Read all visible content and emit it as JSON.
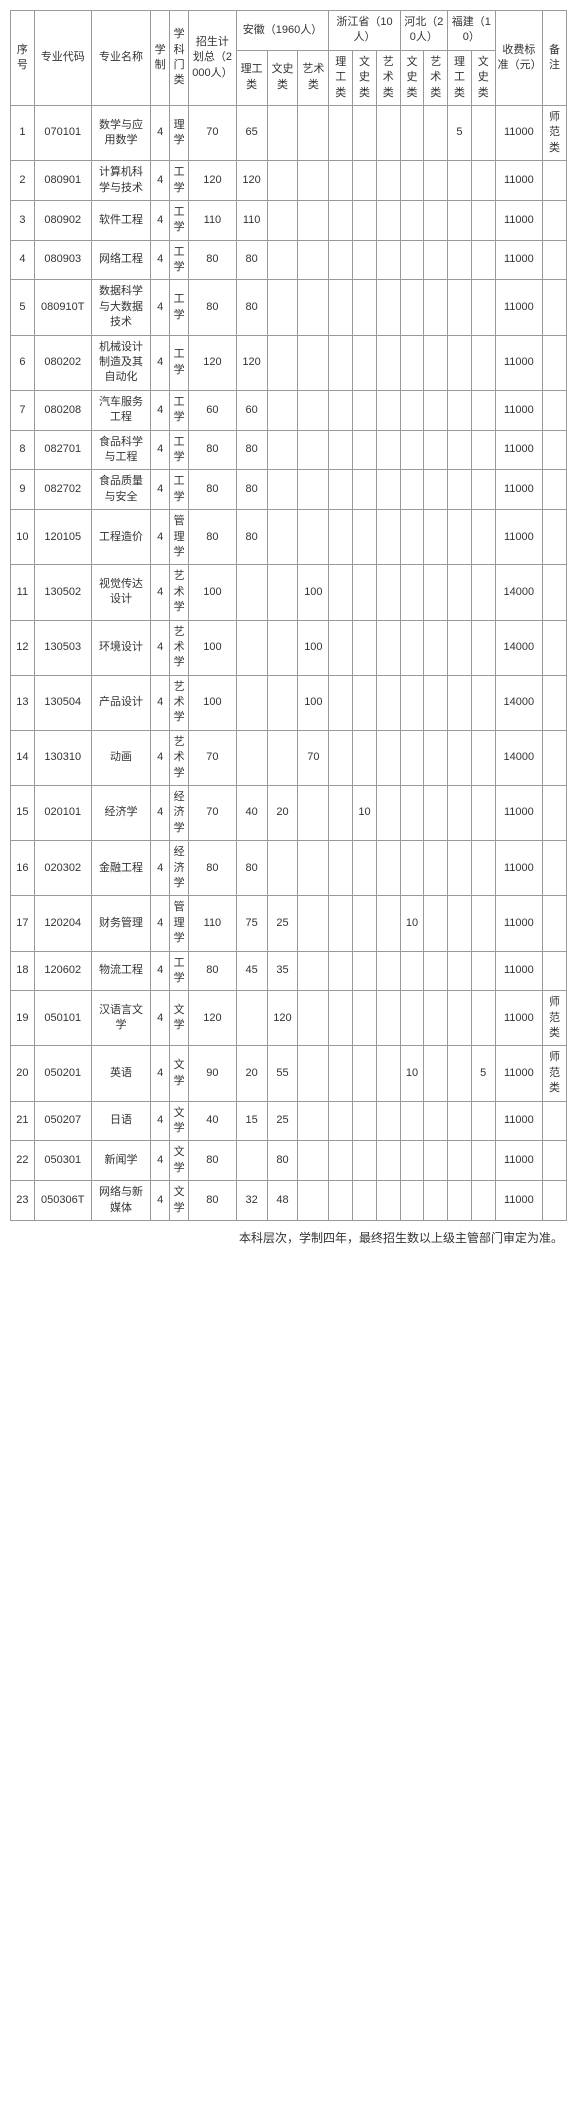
{
  "headers": {
    "seq": "序号",
    "major_code": "专业代码",
    "major_name": "专业名称",
    "years": "学制",
    "category": "学科门类",
    "plan_total": "招生计划总（2000人）",
    "anhui": "安徽（1960人）",
    "zhejiang": "浙江省（10人）",
    "hebei": "河北（20人）",
    "fujian": "福建（10）",
    "fee": "收费标准（元）",
    "note": "备注",
    "sci": "理工类",
    "lit": "文史类",
    "art": "艺术类"
  },
  "rows": [
    {
      "n": "1",
      "code": "070101",
      "name": "数学与应用数学",
      "y": "4",
      "cat": "理学",
      "tot": "70",
      "ah_s": "65",
      "ah_l": "",
      "ah_a": "",
      "zj_s": "",
      "zj_l": "",
      "zj_a": "",
      "hb_l": "",
      "hb_a": "",
      "fj_s": "5",
      "fj_l": "",
      "fee": "11000",
      "note": "师范类"
    },
    {
      "n": "2",
      "code": "080901",
      "name": "计算机科学与技术",
      "y": "4",
      "cat": "工学",
      "tot": "120",
      "ah_s": "120",
      "ah_l": "",
      "ah_a": "",
      "zj_s": "",
      "zj_l": "",
      "zj_a": "",
      "hb_l": "",
      "hb_a": "",
      "fj_s": "",
      "fj_l": "",
      "fee": "11000",
      "note": ""
    },
    {
      "n": "3",
      "code": "080902",
      "name": "软件工程",
      "y": "4",
      "cat": "工学",
      "tot": "110",
      "ah_s": "110",
      "ah_l": "",
      "ah_a": "",
      "zj_s": "",
      "zj_l": "",
      "zj_a": "",
      "hb_l": "",
      "hb_a": "",
      "fj_s": "",
      "fj_l": "",
      "fee": "11000",
      "note": ""
    },
    {
      "n": "4",
      "code": "080903",
      "name": "网络工程",
      "y": "4",
      "cat": "工学",
      "tot": "80",
      "ah_s": "80",
      "ah_l": "",
      "ah_a": "",
      "zj_s": "",
      "zj_l": "",
      "zj_a": "",
      "hb_l": "",
      "hb_a": "",
      "fj_s": "",
      "fj_l": "",
      "fee": "11000",
      "note": ""
    },
    {
      "n": "5",
      "code": "080910T",
      "name": "数据科学与大数据技术",
      "y": "4",
      "cat": "工学",
      "tot": "80",
      "ah_s": "80",
      "ah_l": "",
      "ah_a": "",
      "zj_s": "",
      "zj_l": "",
      "zj_a": "",
      "hb_l": "",
      "hb_a": "",
      "fj_s": "",
      "fj_l": "",
      "fee": "11000",
      "note": ""
    },
    {
      "n": "6",
      "code": "080202",
      "name": "机械设计制造及其自动化",
      "y": "4",
      "cat": "工学",
      "tot": "120",
      "ah_s": "120",
      "ah_l": "",
      "ah_a": "",
      "zj_s": "",
      "zj_l": "",
      "zj_a": "",
      "hb_l": "",
      "hb_a": "",
      "fj_s": "",
      "fj_l": "",
      "fee": "11000",
      "note": ""
    },
    {
      "n": "7",
      "code": "080208",
      "name": "汽车服务工程",
      "y": "4",
      "cat": "工学",
      "tot": "60",
      "ah_s": "60",
      "ah_l": "",
      "ah_a": "",
      "zj_s": "",
      "zj_l": "",
      "zj_a": "",
      "hb_l": "",
      "hb_a": "",
      "fj_s": "",
      "fj_l": "",
      "fee": "11000",
      "note": ""
    },
    {
      "n": "8",
      "code": "082701",
      "name": "食品科学与工程",
      "y": "4",
      "cat": "工学",
      "tot": "80",
      "ah_s": "80",
      "ah_l": "",
      "ah_a": "",
      "zj_s": "",
      "zj_l": "",
      "zj_a": "",
      "hb_l": "",
      "hb_a": "",
      "fj_s": "",
      "fj_l": "",
      "fee": "11000",
      "note": ""
    },
    {
      "n": "9",
      "code": "082702",
      "name": "食品质量与安全",
      "y": "4",
      "cat": "工学",
      "tot": "80",
      "ah_s": "80",
      "ah_l": "",
      "ah_a": "",
      "zj_s": "",
      "zj_l": "",
      "zj_a": "",
      "hb_l": "",
      "hb_a": "",
      "fj_s": "",
      "fj_l": "",
      "fee": "11000",
      "note": ""
    },
    {
      "n": "10",
      "code": "120105",
      "name": "工程造价",
      "y": "4",
      "cat": "管理学",
      "tot": "80",
      "ah_s": "80",
      "ah_l": "",
      "ah_a": "",
      "zj_s": "",
      "zj_l": "",
      "zj_a": "",
      "hb_l": "",
      "hb_a": "",
      "fj_s": "",
      "fj_l": "",
      "fee": "11000",
      "note": ""
    },
    {
      "n": "11",
      "code": "130502",
      "name": "视觉传达设计",
      "y": "4",
      "cat": "艺术学",
      "tot": "100",
      "ah_s": "",
      "ah_l": "",
      "ah_a": "100",
      "zj_s": "",
      "zj_l": "",
      "zj_a": "",
      "hb_l": "",
      "hb_a": "",
      "fj_s": "",
      "fj_l": "",
      "fee": "14000",
      "note": ""
    },
    {
      "n": "12",
      "code": "130503",
      "name": "环境设计",
      "y": "4",
      "cat": "艺术学",
      "tot": "100",
      "ah_s": "",
      "ah_l": "",
      "ah_a": "100",
      "zj_s": "",
      "zj_l": "",
      "zj_a": "",
      "hb_l": "",
      "hb_a": "",
      "fj_s": "",
      "fj_l": "",
      "fee": "14000",
      "note": ""
    },
    {
      "n": "13",
      "code": "130504",
      "name": "产品设计",
      "y": "4",
      "cat": "艺术学",
      "tot": "100",
      "ah_s": "",
      "ah_l": "",
      "ah_a": "100",
      "zj_s": "",
      "zj_l": "",
      "zj_a": "",
      "hb_l": "",
      "hb_a": "",
      "fj_s": "",
      "fj_l": "",
      "fee": "14000",
      "note": ""
    },
    {
      "n": "14",
      "code": "130310",
      "name": "动画",
      "y": "4",
      "cat": "艺术学",
      "tot": "70",
      "ah_s": "",
      "ah_l": "",
      "ah_a": "70",
      "zj_s": "",
      "zj_l": "",
      "zj_a": "",
      "hb_l": "",
      "hb_a": "",
      "fj_s": "",
      "fj_l": "",
      "fee": "14000",
      "note": ""
    },
    {
      "n": "15",
      "code": "020101",
      "name": "经济学",
      "y": "4",
      "cat": "经济学",
      "tot": "70",
      "ah_s": "40",
      "ah_l": "20",
      "ah_a": "",
      "zj_s": "",
      "zj_l": "10",
      "zj_a": "",
      "hb_l": "",
      "hb_a": "",
      "fj_s": "",
      "fj_l": "",
      "fee": "11000",
      "note": ""
    },
    {
      "n": "16",
      "code": "020302",
      "name": "金融工程",
      "y": "4",
      "cat": "经济学",
      "tot": "80",
      "ah_s": "80",
      "ah_l": "",
      "ah_a": "",
      "zj_s": "",
      "zj_l": "",
      "zj_a": "",
      "hb_l": "",
      "hb_a": "",
      "fj_s": "",
      "fj_l": "",
      "fee": "11000",
      "note": ""
    },
    {
      "n": "17",
      "code": "120204",
      "name": "财务管理",
      "y": "4",
      "cat": "管理学",
      "tot": "110",
      "ah_s": "75",
      "ah_l": "25",
      "ah_a": "",
      "zj_s": "",
      "zj_l": "",
      "zj_a": "",
      "hb_l": "10",
      "hb_a": "",
      "fj_s": "",
      "fj_l": "",
      "fee": "11000",
      "note": ""
    },
    {
      "n": "18",
      "code": "120602",
      "name": "物流工程",
      "y": "4",
      "cat": "工学",
      "tot": "80",
      "ah_s": "45",
      "ah_l": "35",
      "ah_a": "",
      "zj_s": "",
      "zj_l": "",
      "zj_a": "",
      "hb_l": "",
      "hb_a": "",
      "fj_s": "",
      "fj_l": "",
      "fee": "11000",
      "note": ""
    },
    {
      "n": "19",
      "code": "050101",
      "name": "汉语言文学",
      "y": "4",
      "cat": "文学",
      "tot": "120",
      "ah_s": "",
      "ah_l": "120",
      "ah_a": "",
      "zj_s": "",
      "zj_l": "",
      "zj_a": "",
      "hb_l": "",
      "hb_a": "",
      "fj_s": "",
      "fj_l": "",
      "fee": "11000",
      "note": "师范类"
    },
    {
      "n": "20",
      "code": "050201",
      "name": "英语",
      "y": "4",
      "cat": "文学",
      "tot": "90",
      "ah_s": "20",
      "ah_l": "55",
      "ah_a": "",
      "zj_s": "",
      "zj_l": "",
      "zj_a": "",
      "hb_l": "10",
      "hb_a": "",
      "fj_s": "",
      "fj_l": "5",
      "fee": "11000",
      "note": "师范类"
    },
    {
      "n": "21",
      "code": "050207",
      "name": "日语",
      "y": "4",
      "cat": "文学",
      "tot": "40",
      "ah_s": "15",
      "ah_l": "25",
      "ah_a": "",
      "zj_s": "",
      "zj_l": "",
      "zj_a": "",
      "hb_l": "",
      "hb_a": "",
      "fj_s": "",
      "fj_l": "",
      "fee": "11000",
      "note": ""
    },
    {
      "n": "22",
      "code": "050301",
      "name": "新闻学",
      "y": "4",
      "cat": "文学",
      "tot": "80",
      "ah_s": "",
      "ah_l": "80",
      "ah_a": "",
      "zj_s": "",
      "zj_l": "",
      "zj_a": "",
      "hb_l": "",
      "hb_a": "",
      "fj_s": "",
      "fj_l": "",
      "fee": "11000",
      "note": ""
    },
    {
      "n": "23",
      "code": "050306T",
      "name": "网络与新媒体",
      "y": "4",
      "cat": "文学",
      "tot": "80",
      "ah_s": "32",
      "ah_l": "48",
      "ah_a": "",
      "zj_s": "",
      "zj_l": "",
      "zj_a": "",
      "hb_l": "",
      "hb_a": "",
      "fj_s": "",
      "fj_l": "",
      "fee": "11000",
      "note": ""
    }
  ],
  "footnote": "本科层次，学制四年，最终招生数以上级主管部门审定为准。",
  "col_widths": [
    "20",
    "48",
    "50",
    "16",
    "16",
    "40",
    "26",
    "26",
    "26",
    "20",
    "20",
    "20",
    "20",
    "20",
    "20",
    "20",
    "40",
    "20"
  ]
}
